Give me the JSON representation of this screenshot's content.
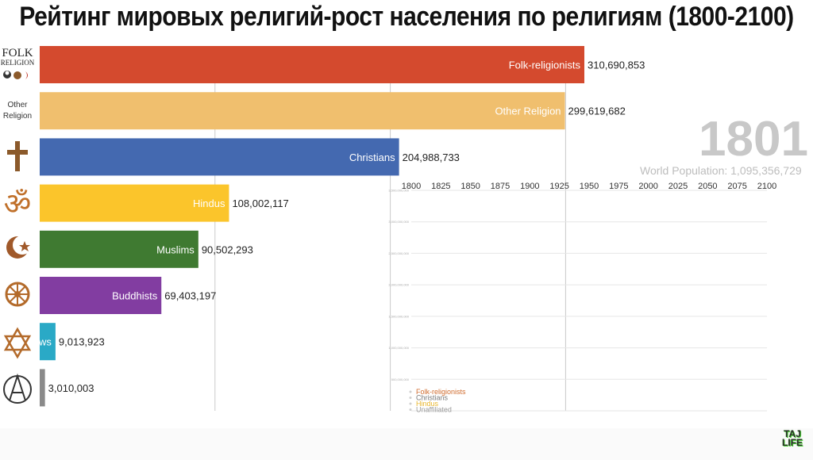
{
  "title": "Рейтинг мировых религий-рост населения по религиям (1800-2100)",
  "year": "1801",
  "world_population": "World Population: 1,095,356,729",
  "brand": {
    "line1": "TAJ",
    "line2": "LIFE"
  },
  "icons": {
    "folk_label_1": "FOLK",
    "folk_label_2": "RELIGION",
    "other_label_1": "Other",
    "other_label_2": "Religion"
  },
  "chart_data": [
    {
      "type": "bar",
      "orientation": "horizontal",
      "title": "Рейтинг мировых религий-рост населения по религиям (1800-2100)",
      "categories": [
        "Folk-religionists",
        "Other Religion",
        "Christians",
        "Hindus",
        "Muslims",
        "Buddhists",
        "Jews",
        "Unaffiliated"
      ],
      "bar_labels": [
        "Folk-religionists",
        "Other Religion",
        "Christians",
        "Hindus",
        "Muslims",
        "Buddhists",
        "ws",
        ""
      ],
      "values": [
        310690853,
        299619682,
        204988733,
        108002117,
        90502293,
        69403197,
        9013923,
        3010003
      ],
      "value_labels": [
        "310,690,853",
        "299,619,682",
        "204,988,733",
        "108,002,117",
        "90,502,293",
        "69,403,197",
        "9,013,923",
        "3,010,003"
      ],
      "colors": [
        "#d44a2e",
        "#f0bf6e",
        "#4469b0",
        "#fbc52b",
        "#3f7a31",
        "#823da1",
        "#2aa9c6",
        "#8a8a8a"
      ],
      "gridlines": [
        100000000,
        200000000,
        300000000
      ],
      "xlim": [
        0,
        310690853
      ]
    },
    {
      "type": "line",
      "x_ticks": [
        "1800",
        "1825",
        "1850",
        "1875",
        "1900",
        "1925",
        "1950",
        "1975",
        "2000",
        "2025",
        "2050",
        "2075",
        "2100"
      ],
      "xlim": [
        1800,
        2100
      ],
      "y_ticks": [
        "3,500,000,000",
        "3,000,000,000",
        "2,500,000,000",
        "2,000,000,000",
        "1,500,000,000",
        "1,000,000,000",
        "500,000,000"
      ],
      "y_values": [
        3500000000,
        3000000000,
        2500000000,
        2000000000,
        1500000000,
        1000000000,
        500000000
      ],
      "ylim": [
        0,
        3500000000
      ],
      "grid": true,
      "legend": [
        {
          "name": "Folk-religionists",
          "color": "#d06b2d"
        },
        {
          "name": "Christians",
          "color": "#7a7a7a"
        },
        {
          "name": "Hindus",
          "color": "#e8b52a"
        },
        {
          "name": "Unaffiliated",
          "color": "#9a9a9a"
        }
      ]
    }
  ]
}
